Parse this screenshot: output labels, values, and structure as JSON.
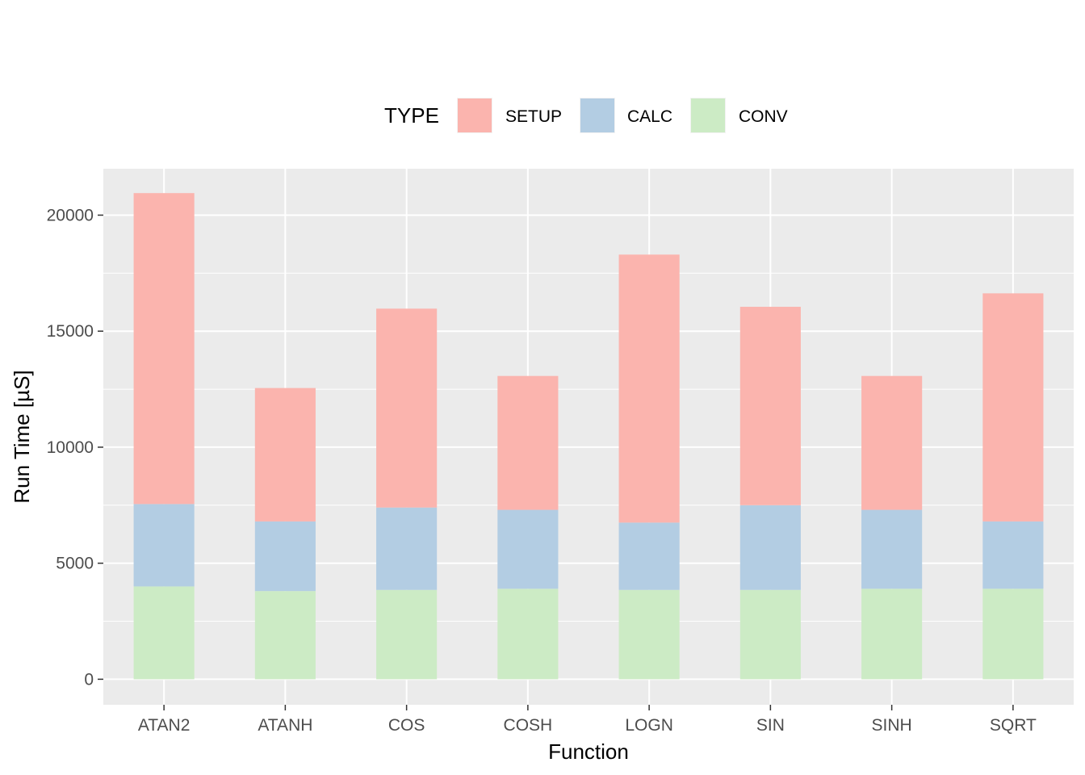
{
  "chart_data": {
    "type": "bar",
    "stacked": true,
    "title": "",
    "xlabel": "Function",
    "ylabel": "Run Time [µS]",
    "categories": [
      "ATAN2",
      "ATANH",
      "COS",
      "COSH",
      "LOGN",
      "SIN",
      "SINH",
      "SQRT"
    ],
    "series": [
      {
        "name": "CONV",
        "color": "#CCEBC5",
        "values": [
          4000,
          3800,
          3850,
          3900,
          3850,
          3850,
          3900,
          3900
        ]
      },
      {
        "name": "CALC",
        "color": "#B3CDE3",
        "values": [
          3550,
          3000,
          3550,
          3400,
          2900,
          3650,
          3400,
          2900
        ]
      },
      {
        "name": "SETUP",
        "color": "#FBB4AE",
        "values": [
          13400,
          5750,
          8570,
          5770,
          11550,
          8550,
          5770,
          9830
        ]
      }
    ],
    "ylim": [
      -1100,
      22000
    ],
    "yticks": [
      0,
      5000,
      10000,
      15000,
      20000
    ],
    "grid": true,
    "legend": {
      "title": "TYPE",
      "position": "top",
      "order": [
        "SETUP",
        "CALC",
        "CONV"
      ]
    }
  }
}
